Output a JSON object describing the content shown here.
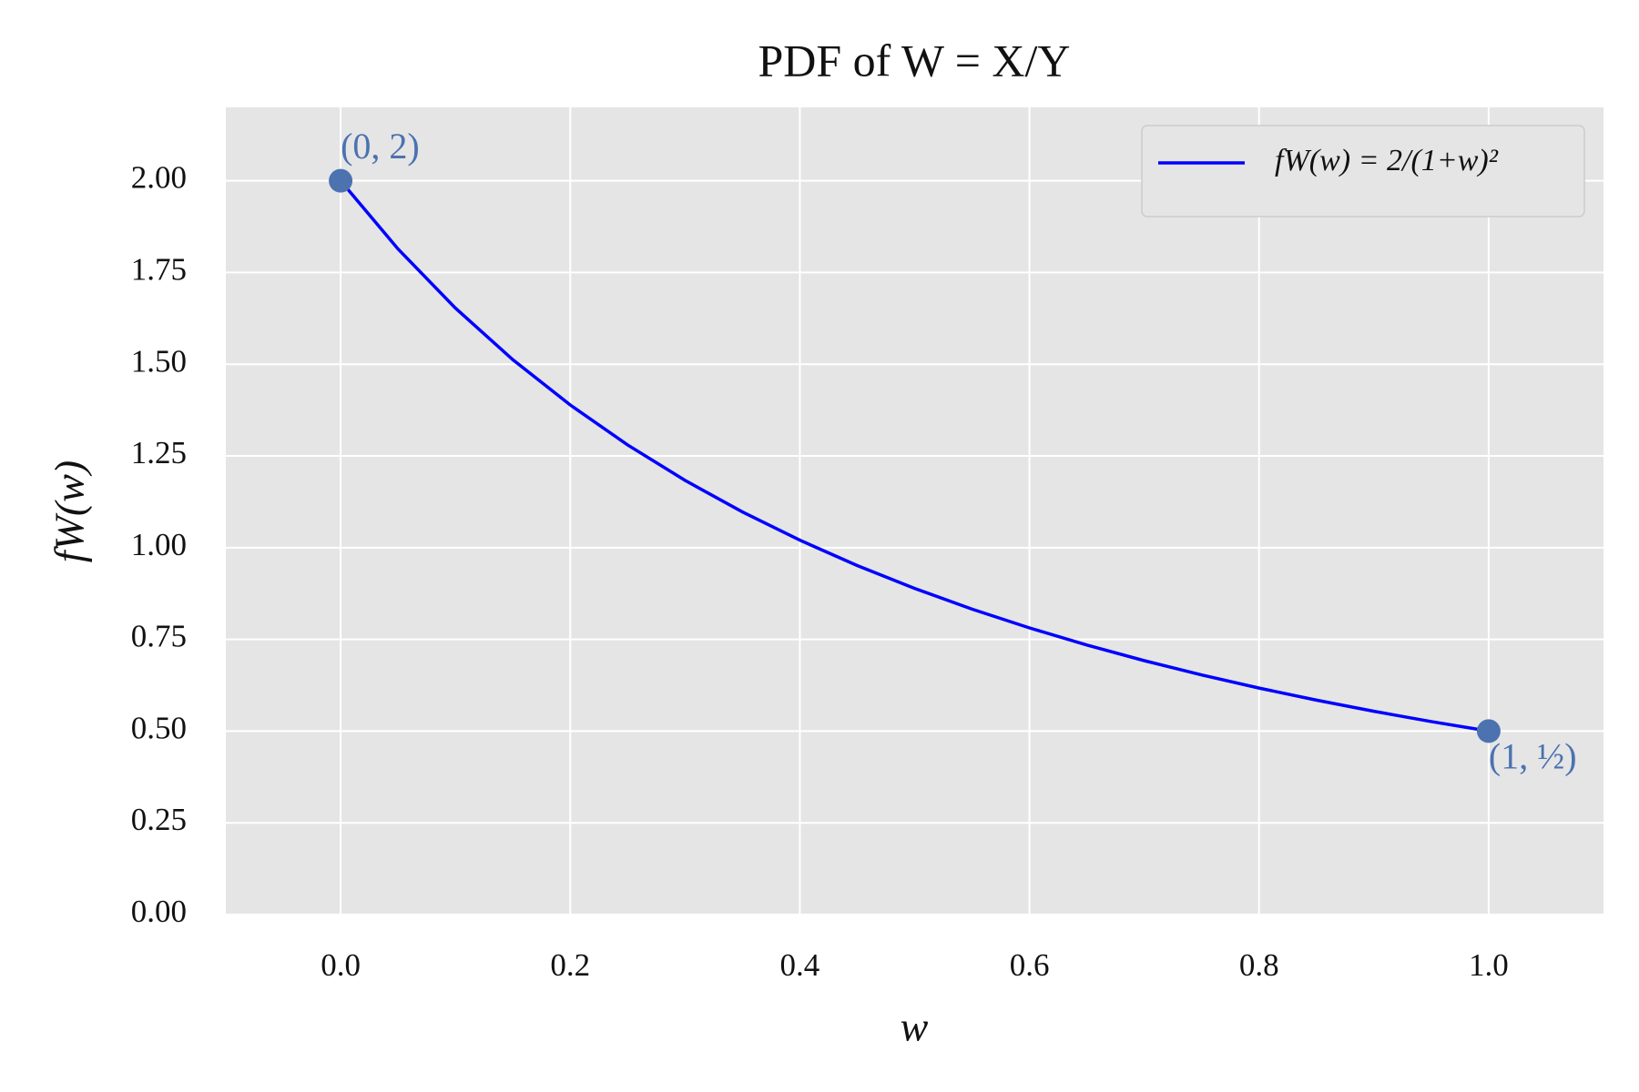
{
  "chart_data": {
    "type": "line",
    "title": "PDF of W = X/Y",
    "xlabel": "w",
    "ylabel": "fW(w)",
    "x": [
      0,
      0.05,
      0.1,
      0.15,
      0.2,
      0.25,
      0.3,
      0.35,
      0.4,
      0.45,
      0.5,
      0.55,
      0.6,
      0.65,
      0.7,
      0.75,
      0.8,
      0.85,
      0.9,
      0.95,
      1
    ],
    "series": [
      {
        "name": "fW(w) = 2/(1+w)²",
        "color": "#0000ff",
        "values": [
          2,
          1.8141,
          1.6529,
          1.5123,
          1.3889,
          1.28,
          1.1834,
          1.0974,
          1.0204,
          0.9512,
          0.8889,
          0.8325,
          0.7813,
          0.7346,
          0.692,
          0.6531,
          0.6173,
          0.5844,
          0.554,
          0.526,
          0.5
        ]
      }
    ],
    "points": {
      "color": "#4c72b0",
      "x": [
        0,
        1
      ],
      "y": [
        2,
        0.5
      ],
      "labels": [
        "(0, 2)",
        "(1, ½)"
      ]
    },
    "xlim": [
      -0.1,
      1.1
    ],
    "ylim": [
      0,
      2.2
    ],
    "xticks": [
      {
        "value": 0,
        "label": "0.0"
      },
      0.2,
      0.4,
      0.6,
      0.8,
      {
        "value": 1,
        "label": "1.0"
      }
    ],
    "yticks": [
      {
        "value": 0,
        "label": "0.00"
      },
      0.25,
      {
        "value": 0.5,
        "label": "0.50"
      },
      0.75,
      {
        "value": 1,
        "label": "1.00"
      },
      1.25,
      {
        "value": 1.5,
        "label": "1.50"
      },
      1.75,
      {
        "value": 2,
        "label": "2.00"
      }
    ],
    "grid": true,
    "legend": "upper right"
  }
}
